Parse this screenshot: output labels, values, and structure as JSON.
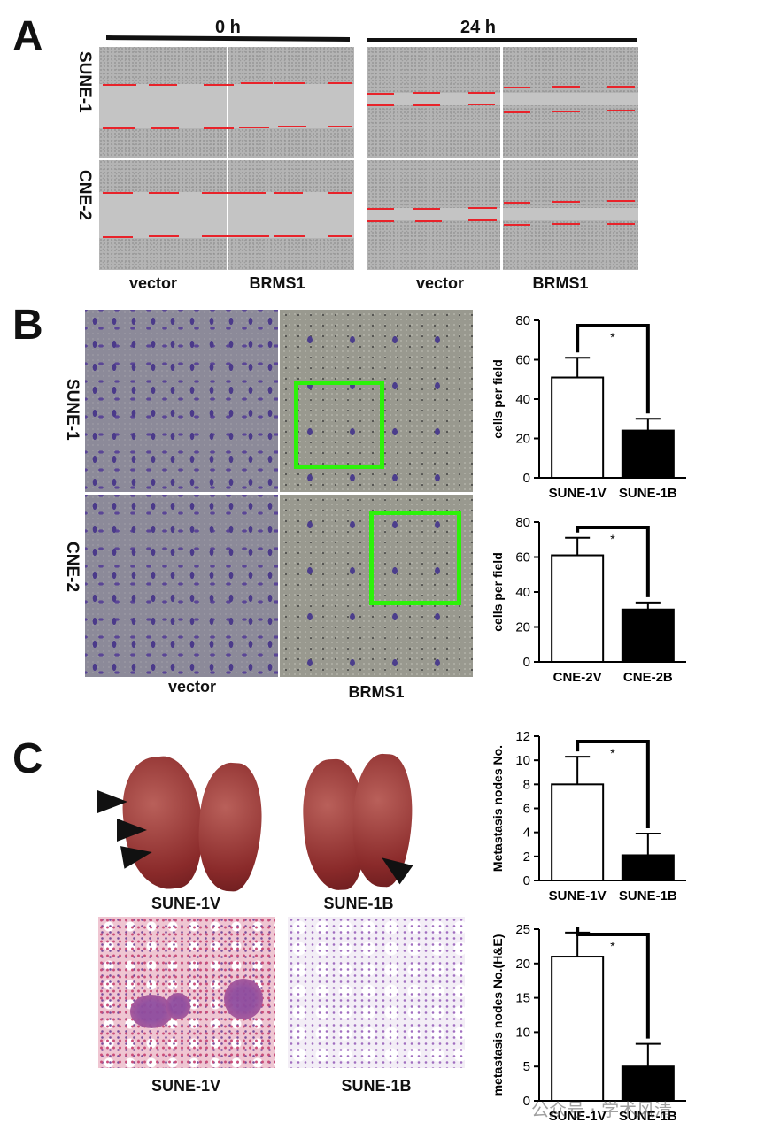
{
  "panel_a": {
    "letter": "A",
    "time_0h": "0 h",
    "time_24h": "24 h",
    "row_labels": [
      "SUNE-1",
      "CNE-2"
    ],
    "col_labels": [
      "vector",
      "BRMS1",
      "vector",
      "BRMS1"
    ]
  },
  "panel_b": {
    "letter": "B",
    "row_labels": [
      "SUNE-1",
      "CNE-2"
    ],
    "col_labels": [
      "vector",
      "BRMS1"
    ]
  },
  "panel_c": {
    "letter": "C",
    "lung_labels": [
      "SUNE-1V",
      "SUNE-1B"
    ],
    "histo_labels": [
      "SUNE-1V",
      "SUNE-1B"
    ]
  },
  "watermark": "公众号 · 学术风清",
  "chart_data": [
    {
      "type": "bar",
      "categories": [
        "SUNE-1V",
        "SUNE-1B"
      ],
      "values": [
        51,
        24
      ],
      "errors": [
        10,
        6
      ],
      "bar_colors": [
        "#ffffff",
        "#000000"
      ],
      "ylabel": "cells per field",
      "ylim": [
        0,
        80
      ],
      "yticks": [
        0,
        20,
        40,
        60,
        80
      ],
      "significance": "*"
    },
    {
      "type": "bar",
      "categories": [
        "CNE-2V",
        "CNE-2B"
      ],
      "values": [
        61,
        30
      ],
      "errors": [
        10,
        4
      ],
      "bar_colors": [
        "#ffffff",
        "#000000"
      ],
      "ylabel": "cells per field",
      "ylim": [
        0,
        80
      ],
      "yticks": [
        0,
        20,
        40,
        60,
        80
      ],
      "significance": "*"
    },
    {
      "type": "bar",
      "categories": [
        "SUNE-1V",
        "SUNE-1B"
      ],
      "values": [
        8,
        2.1
      ],
      "errors": [
        2.3,
        1.8
      ],
      "bar_colors": [
        "#ffffff",
        "#000000"
      ],
      "ylabel": "Metastasis nodes No.",
      "ylim": [
        0,
        12
      ],
      "yticks": [
        0,
        2,
        4,
        6,
        8,
        10,
        12
      ],
      "significance": "*"
    },
    {
      "type": "bar",
      "categories": [
        "SUNE-1V",
        "SUNE-1B"
      ],
      "values": [
        21,
        5
      ],
      "errors": [
        3.5,
        3.3
      ],
      "bar_colors": [
        "#ffffff",
        "#000000"
      ],
      "ylabel": "metastasis nodes No.(H&E)",
      "ylim": [
        0,
        25
      ],
      "yticks": [
        0,
        5,
        10,
        15,
        20,
        25
      ],
      "significance": "*"
    }
  ]
}
